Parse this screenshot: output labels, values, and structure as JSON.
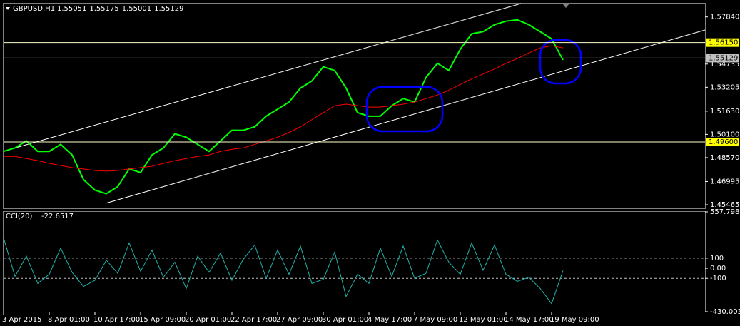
{
  "chart_data": [
    {
      "type": "line",
      "symbol": "GBPUSD,H1",
      "ohlc": [
        1.55051,
        1.55175,
        1.55001,
        1.55129
      ],
      "categories": [
        "3 Apr 2015",
        null,
        null,
        null,
        "8 Apr 01:00",
        null,
        null,
        null,
        "10 Apr 17:00",
        null,
        null,
        null,
        "15 Apr 09:00",
        null,
        null,
        null,
        "20 Apr 01:00",
        null,
        null,
        null,
        "22 Apr 17:00",
        null,
        null,
        null,
        "27 Apr 09:00",
        null,
        null,
        null,
        "30 Apr 01:00",
        null,
        null,
        null,
        "4 May 17:00",
        null,
        null,
        null,
        "7 May 09:00",
        null,
        null,
        null,
        "12 May 01:00",
        null,
        null,
        null,
        "14 May 17:00",
        null,
        null,
        null,
        "19 May 09:00",
        null
      ],
      "series": [
        {
          "color": "#00ff00",
          "values": [
            1.4898,
            1.4921,
            1.4967,
            1.4898,
            1.4898,
            1.4944,
            1.4875,
            1.4712,
            1.4643,
            1.4619,
            1.4666,
            1.4782,
            1.4759,
            1.4875,
            1.4921,
            1.5014,
            1.4991,
            1.4944,
            1.4898,
            1.4967,
            1.5037,
            1.5037,
            1.506,
            1.513,
            1.5176,
            1.5223,
            1.5315,
            1.5362,
            1.5455,
            1.5431,
            1.5315,
            1.5153,
            1.513,
            1.513,
            1.5199,
            1.5246,
            1.5223,
            1.5385,
            1.5478,
            1.5431,
            1.5571,
            1.5673,
            1.5687,
            1.5733,
            1.5756,
            1.5765,
            1.5733,
            1.5687,
            1.564,
            1.5501
          ]
        },
        {
          "color": "#ff0000",
          "values": [
            1.4865,
            1.4865,
            1.4851,
            1.4837,
            1.4819,
            1.4805,
            1.4791,
            1.4782,
            1.4772,
            1.4768,
            1.4772,
            1.4782,
            1.4791,
            1.48,
            1.4819,
            1.4837,
            1.4851,
            1.4865,
            1.4875,
            1.4898,
            1.4912,
            1.4921,
            1.4944,
            1.4967,
            1.4991,
            1.5023,
            1.506,
            1.5107,
            1.5153,
            1.5199,
            1.5209,
            1.5199,
            1.519,
            1.519,
            1.5199,
            1.5209,
            1.5223,
            1.5246,
            1.5269,
            1.5301,
            1.5339,
            1.5376,
            1.5408,
            1.5441,
            1.5478,
            1.551,
            1.5547,
            1.558,
            1.5594,
            1.558
          ]
        }
      ],
      "levels": [
        {
          "value": 1.5615,
          "label": "1.56150"
        },
        {
          "value": 1.496,
          "label": "1.49600"
        }
      ],
      "ylim": [
        1.4523,
        1.5872
      ],
      "yticks": [
        {
          "value": 1.5784,
          "label": "1.57840"
        },
        {
          "value": 1.54735,
          "label": "1.54735"
        },
        {
          "value": 1.53205,
          "label": "1.53205"
        },
        {
          "value": 1.5163,
          "label": "1.51630"
        },
        {
          "value": 1.501,
          "label": "1.50100"
        },
        {
          "value": 1.4857,
          "label": "1.48570"
        },
        {
          "value": 1.46995,
          "label": "1.46995"
        },
        {
          "value": 1.45465,
          "label": "1.45465"
        }
      ]
    },
    {
      "type": "line",
      "name": "CCI(20)",
      "color": "#20b2aa",
      "values": [
        300,
        -80,
        120,
        -150,
        -60,
        200,
        -40,
        -180,
        -120,
        80,
        -50,
        250,
        -30,
        180,
        -90,
        60,
        -200,
        120,
        -40,
        150,
        -120,
        90,
        230,
        -100,
        180,
        -60,
        220,
        -150,
        -110,
        160,
        -280,
        -60,
        -150,
        200,
        -80,
        220,
        -100,
        -50,
        280,
        60,
        -60,
        250,
        -20,
        230,
        -60,
        -130,
        -90,
        -200,
        -350,
        -22.6517
      ],
      "ylim": [
        -430.0033,
        557.7989
      ],
      "yticks": [
        557.7989,
        100,
        {
          "value": 0,
          "label": "0.00"
        },
        -100,
        -430.0033
      ]
    }
  ]
}
